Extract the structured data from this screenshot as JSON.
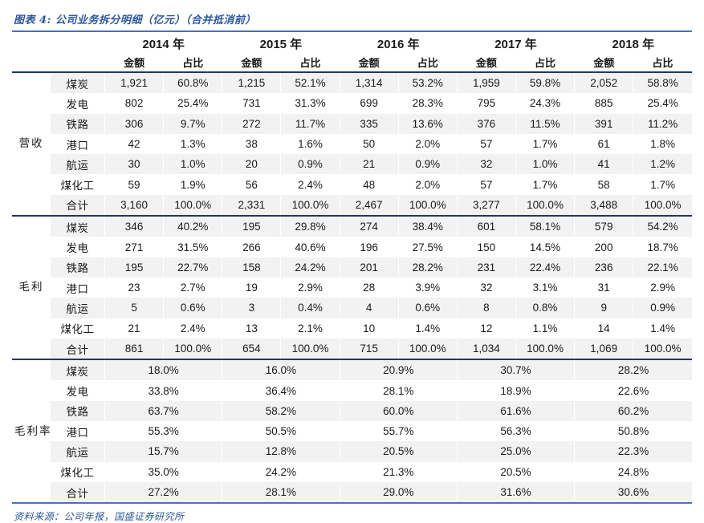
{
  "title": "图表 4: 公司业务拆分明细（亿元）（合并抵消前）",
  "source": "资料来源：公司年报，国盛证券研究所",
  "years": [
    "2014 年",
    "2015 年",
    "2016 年",
    "2017 年",
    "2018 年"
  ],
  "subheaders": {
    "amount": "金额",
    "share": "占比"
  },
  "colors": {
    "title_blue": "#2b579e",
    "divider_navy": "#1f3864",
    "bottom_blue": "#4472c4",
    "stripe_gray": "#f2f2f2"
  },
  "chart_data": {
    "type": "table",
    "title": "图表 4: 公司业务拆分明细（亿元）（合并抵消前）",
    "years": [
      "2014",
      "2015",
      "2016",
      "2017",
      "2018"
    ],
    "column_pair": [
      "金额",
      "占比"
    ],
    "sections": [
      {
        "id": "revenue",
        "name": "营收",
        "span": false,
        "rows": [
          {
            "label": "煤炭",
            "cells": [
              "1,921",
              "60.8%",
              "1,215",
              "52.1%",
              "1,314",
              "53.2%",
              "1,959",
              "59.8%",
              "2,052",
              "58.8%"
            ]
          },
          {
            "label": "发电",
            "cells": [
              "802",
              "25.4%",
              "731",
              "31.3%",
              "699",
              "28.3%",
              "795",
              "24.3%",
              "885",
              "25.4%"
            ]
          },
          {
            "label": "铁路",
            "cells": [
              "306",
              "9.7%",
              "272",
              "11.7%",
              "335",
              "13.6%",
              "376",
              "11.5%",
              "391",
              "11.2%"
            ]
          },
          {
            "label": "港口",
            "cells": [
              "42",
              "1.3%",
              "38",
              "1.6%",
              "50",
              "2.0%",
              "57",
              "1.7%",
              "61",
              "1.8%"
            ]
          },
          {
            "label": "航运",
            "cells": [
              "30",
              "1.0%",
              "20",
              "0.9%",
              "21",
              "0.9%",
              "32",
              "1.0%",
              "41",
              "1.2%"
            ]
          },
          {
            "label": "煤化工",
            "cells": [
              "59",
              "1.9%",
              "56",
              "2.4%",
              "48",
              "2.0%",
              "57",
              "1.7%",
              "58",
              "1.7%"
            ]
          },
          {
            "label": "合计",
            "cells": [
              "3,160",
              "100.0%",
              "2,331",
              "100.0%",
              "2,467",
              "100.0%",
              "3,277",
              "100.0%",
              "3,488",
              "100.0%"
            ]
          }
        ]
      },
      {
        "id": "gross-profit",
        "name": "毛利",
        "span": false,
        "rows": [
          {
            "label": "煤炭",
            "cells": [
              "346",
              "40.2%",
              "195",
              "29.8%",
              "274",
              "38.4%",
              "601",
              "58.1%",
              "579",
              "54.2%"
            ]
          },
          {
            "label": "发电",
            "cells": [
              "271",
              "31.5%",
              "266",
              "40.6%",
              "196",
              "27.5%",
              "150",
              "14.5%",
              "200",
              "18.7%"
            ]
          },
          {
            "label": "铁路",
            "cells": [
              "195",
              "22.7%",
              "158",
              "24.2%",
              "201",
              "28.2%",
              "231",
              "22.4%",
              "236",
              "22.1%"
            ]
          },
          {
            "label": "港口",
            "cells": [
              "23",
              "2.7%",
              "19",
              "2.9%",
              "28",
              "3.9%",
              "32",
              "3.1%",
              "31",
              "2.9%"
            ]
          },
          {
            "label": "航运",
            "cells": [
              "5",
              "0.6%",
              "3",
              "0.4%",
              "4",
              "0.6%",
              "8",
              "0.8%",
              "9",
              "0.9%"
            ]
          },
          {
            "label": "煤化工",
            "cells": [
              "21",
              "2.4%",
              "13",
              "2.1%",
              "10",
              "1.4%",
              "12",
              "1.1%",
              "14",
              "1.4%"
            ]
          },
          {
            "label": "合计",
            "cells": [
              "861",
              "100.0%",
              "654",
              "100.0%",
              "715",
              "100.0%",
              "1,034",
              "100.0%",
              "1,069",
              "100.0%"
            ]
          }
        ]
      },
      {
        "id": "gross-margin",
        "name": "毛利率",
        "span": true,
        "rows": [
          {
            "label": "煤炭",
            "cells": [
              "18.0%",
              "16.0%",
              "20.9%",
              "30.7%",
              "28.2%"
            ]
          },
          {
            "label": "发电",
            "cells": [
              "33.8%",
              "36.4%",
              "28.1%",
              "18.9%",
              "22.6%"
            ]
          },
          {
            "label": "铁路",
            "cells": [
              "63.7%",
              "58.2%",
              "60.0%",
              "61.6%",
              "60.2%"
            ]
          },
          {
            "label": "港口",
            "cells": [
              "55.3%",
              "50.5%",
              "55.7%",
              "56.3%",
              "50.8%"
            ]
          },
          {
            "label": "航运",
            "cells": [
              "15.7%",
              "12.8%",
              "20.5%",
              "25.0%",
              "22.3%"
            ]
          },
          {
            "label": "煤化工",
            "cells": [
              "35.0%",
              "24.2%",
              "21.3%",
              "20.5%",
              "24.8%"
            ]
          },
          {
            "label": "合计",
            "cells": [
              "27.2%",
              "28.1%",
              "29.0%",
              "31.6%",
              "30.6%"
            ]
          }
        ]
      }
    ]
  }
}
